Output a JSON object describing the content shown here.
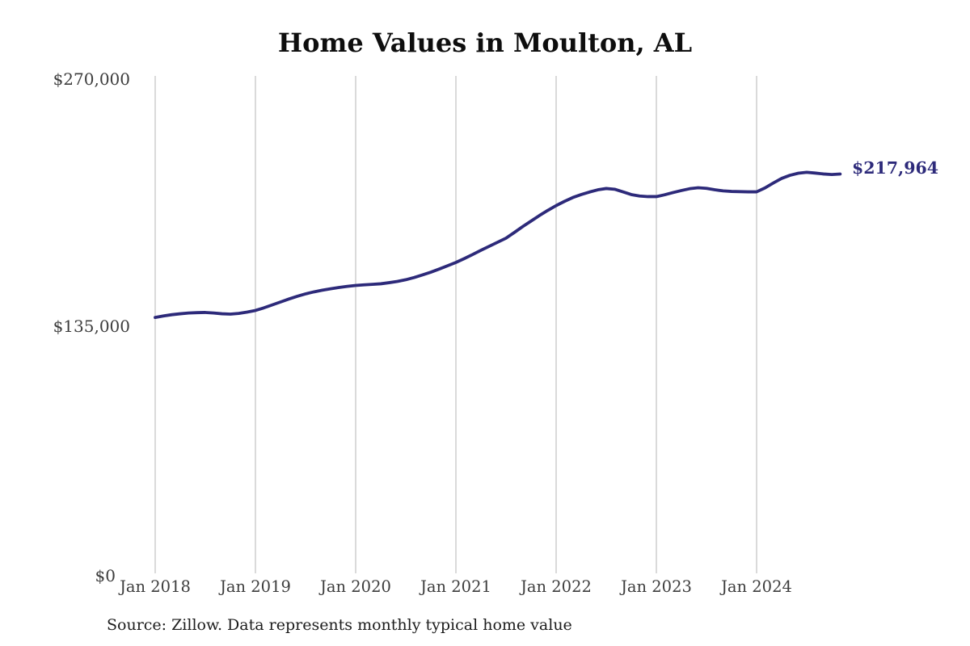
{
  "title": "Home Values in Moulton, AL",
  "source_note": "Source: Zillow. Data represents monthly typical home value",
  "colors": {
    "line": "#2d2a7a",
    "end_label": "#2d2a7a",
    "grid": "#b5b5b5",
    "axis_text": "#3d3d3d",
    "title_text": "#0e0e0e",
    "source_text": "#1c1c1c",
    "background": "#ffffff"
  },
  "chart_data": {
    "type": "line",
    "title": "Home Values in Moulton, AL",
    "series_name": "Monthly typical home value",
    "x_frequency": "monthly",
    "x_start": "2018-01",
    "x_end": "2024-11",
    "x_tick_labels": [
      "Jan 2018",
      "Jan 2019",
      "Jan 2020",
      "Jan 2021",
      "Jan 2022",
      "Jan 2023",
      "Jan 2024"
    ],
    "y_tick_labels": [
      "$0",
      "$135,000",
      "$270,000"
    ],
    "ylim": [
      0,
      270000
    ],
    "grid": "vertical-only",
    "legend": "none",
    "last_value": 217964,
    "last_value_label": "$217,964",
    "values": [
      140000,
      140800,
      141500,
      142000,
      142400,
      142600,
      142700,
      142400,
      142000,
      141800,
      142200,
      142900,
      143800,
      145200,
      146800,
      148400,
      150000,
      151500,
      152800,
      153900,
      154800,
      155600,
      156300,
      156900,
      157400,
      157700,
      158000,
      158300,
      158900,
      159600,
      160500,
      161700,
      163100,
      164600,
      166300,
      168100,
      169900,
      172000,
      174200,
      176500,
      178700,
      180900,
      183100,
      186200,
      189400,
      192400,
      195400,
      198200,
      200800,
      203100,
      205200,
      206800,
      208200,
      209400,
      210100,
      209700,
      208300,
      206800,
      206000,
      205700,
      205700,
      206700,
      207900,
      209000,
      210000,
      210500,
      210200,
      209400,
      208800,
      208500,
      208400,
      208300,
      208300,
      210400,
      213100,
      215600,
      217300,
      218400,
      218900,
      218500,
      218000,
      217700,
      217964
    ]
  }
}
